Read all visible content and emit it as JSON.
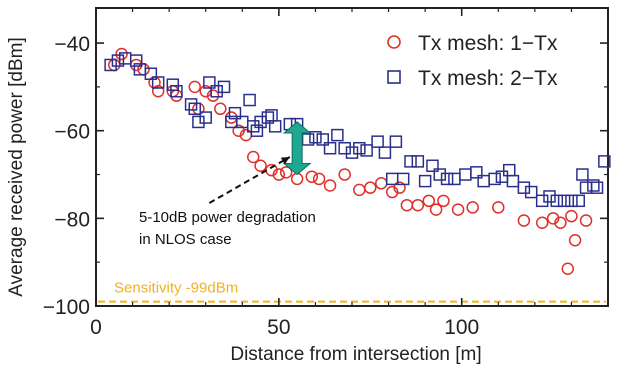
{
  "chart_data": {
    "type": "scatter",
    "xlabel": "Distance from intersection [m]",
    "ylabel": "Average received power [dBm]",
    "xlim": [
      0,
      140
    ],
    "ylim": [
      -100,
      -32
    ],
    "xticks": [
      0,
      50,
      100
    ],
    "yticks": [
      -100,
      -80,
      -60,
      -40
    ],
    "xtick_labels": [
      "0",
      "50",
      "100"
    ],
    "ytick_labels": [
      "−100",
      "−80",
      "−60",
      "−40"
    ],
    "minor_xticks": [
      10,
      20,
      30,
      40,
      60,
      70,
      80,
      90,
      110,
      120,
      130
    ],
    "minor_yticks": [
      -90,
      -70,
      -50
    ],
    "grid": false,
    "legend_position": "top-right",
    "series": [
      {
        "name": "Tx mesh: 1−Tx",
        "marker": "circle",
        "color": "#e0302a",
        "points": [
          [
            5,
            -45
          ],
          [
            7,
            -42.5
          ],
          [
            11,
            -45
          ],
          [
            13,
            -46
          ],
          [
            16,
            -49
          ],
          [
            17,
            -51
          ],
          [
            21,
            -51
          ],
          [
            22,
            -52
          ],
          [
            27,
            -50
          ],
          [
            28,
            -55
          ],
          [
            30,
            -51
          ],
          [
            32,
            -52
          ],
          [
            34,
            -55
          ],
          [
            37,
            -57
          ],
          [
            39,
            -60
          ],
          [
            41,
            -61
          ],
          [
            43,
            -66
          ],
          [
            45,
            -68
          ],
          [
            48,
            -69
          ],
          [
            50,
            -70
          ],
          [
            52,
            -69.5
          ],
          [
            55,
            -71
          ],
          [
            59,
            -70.5
          ],
          [
            61,
            -71
          ],
          [
            64,
            -72.5
          ],
          [
            68,
            -70
          ],
          [
            72,
            -73.5
          ],
          [
            75,
            -73
          ],
          [
            78,
            -72
          ],
          [
            81,
            -74
          ],
          [
            83,
            -73
          ],
          [
            85,
            -77
          ],
          [
            88,
            -77
          ],
          [
            91,
            -76
          ],
          [
            93,
            -78
          ],
          [
            95,
            -76
          ],
          [
            99,
            -78
          ],
          [
            103,
            -77.5
          ],
          [
            110,
            -77.5
          ],
          [
            117,
            -80.5
          ],
          [
            122,
            -81
          ],
          [
            125,
            -80
          ],
          [
            127,
            -81
          ],
          [
            129,
            -91.5
          ],
          [
            130,
            -79.5
          ],
          [
            131,
            -85
          ],
          [
            134,
            -80.5
          ]
        ]
      },
      {
        "name": "Tx mesh: 2−Tx",
        "marker": "square",
        "color": "#2b2f8c",
        "points": [
          [
            4,
            -45
          ],
          [
            6,
            -44
          ],
          [
            8,
            -43.5
          ],
          [
            11,
            -44
          ],
          [
            12,
            -46
          ],
          [
            15,
            -47
          ],
          [
            17,
            -49
          ],
          [
            21,
            -49.5
          ],
          [
            22,
            -51
          ],
          [
            26,
            -54
          ],
          [
            27,
            -55
          ],
          [
            28,
            -58
          ],
          [
            30,
            -57
          ],
          [
            31,
            -49
          ],
          [
            33,
            -51
          ],
          [
            35,
            -50
          ],
          [
            37,
            -58
          ],
          [
            38,
            -56
          ],
          [
            40,
            -58
          ],
          [
            42,
            -53
          ],
          [
            43,
            -59
          ],
          [
            44,
            -60
          ],
          [
            45,
            -58
          ],
          [
            47,
            -57
          ],
          [
            48,
            -56.5
          ],
          [
            49,
            -59
          ],
          [
            53,
            -58.5
          ],
          [
            55,
            -58.5
          ],
          [
            58,
            -62
          ],
          [
            60,
            -61.5
          ],
          [
            62,
            -62
          ],
          [
            64,
            -64
          ],
          [
            66,
            -61
          ],
          [
            68,
            -64
          ],
          [
            70,
            -65
          ],
          [
            72,
            -64
          ],
          [
            74,
            -64.5
          ],
          [
            77,
            -62.5
          ],
          [
            79,
            -65
          ],
          [
            81,
            -71
          ],
          [
            82,
            -62.5
          ],
          [
            84,
            -71
          ],
          [
            86,
            -67
          ],
          [
            88,
            -67
          ],
          [
            90,
            -71.5
          ],
          [
            92,
            -68
          ],
          [
            94,
            -70
          ],
          [
            96,
            -71
          ],
          [
            98,
            -71
          ],
          [
            101,
            -70
          ],
          [
            104,
            -69.5
          ],
          [
            106,
            -71.5
          ],
          [
            109,
            -71
          ],
          [
            111,
            -70.5
          ],
          [
            113,
            -69
          ],
          [
            114,
            -71.5
          ],
          [
            117,
            -73
          ],
          [
            119,
            -74
          ],
          [
            122,
            -76
          ],
          [
            124,
            -75
          ],
          [
            126,
            -76
          ],
          [
            128,
            -76
          ],
          [
            130,
            -76
          ],
          [
            132,
            -76
          ],
          [
            133,
            -70
          ],
          [
            134,
            -73
          ],
          [
            136,
            -72.5
          ],
          [
            137,
            -73
          ],
          [
            139,
            -67
          ]
        ]
      }
    ],
    "sensitivity": {
      "value": -99,
      "label": "Sensitivity -99dBm",
      "color": "#f2b21f"
    },
    "annotation": {
      "lines": [
        "5-10dB power degradation",
        "in NLOS case"
      ],
      "arrow_x": 55,
      "arrow_y_top": -58,
      "arrow_y_bottom": -70,
      "arrow_color": "#1fa891",
      "pointer_from": [
        31,
        -76.5
      ],
      "pointer_to": [
        53,
        -66
      ]
    }
  }
}
